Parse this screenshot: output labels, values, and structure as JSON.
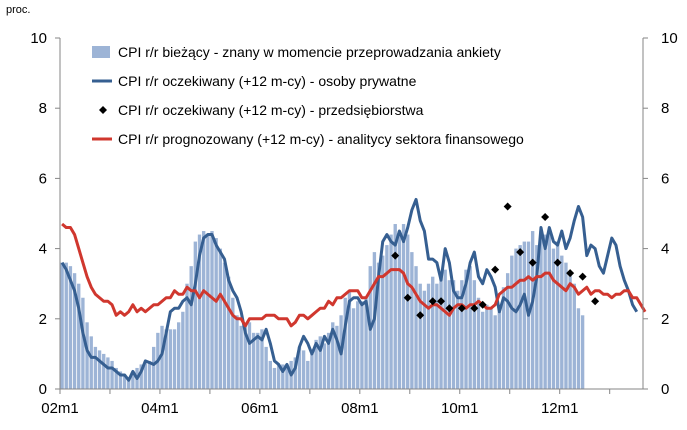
{
  "chart_data": {
    "type": "bar+line",
    "unit_label": "proc.",
    "x_start": "02m1",
    "x_tick_labels": [
      "02m1",
      "04m1",
      "06m1",
      "08m1",
      "10m1",
      "12m1"
    ],
    "y_ticks": [
      0,
      2,
      4,
      6,
      8,
      10
    ],
    "ylim": [
      0,
      10
    ],
    "y2_ticks": [
      0,
      2,
      4,
      6,
      8,
      10
    ],
    "grid": false,
    "legend_position": "top",
    "series": [
      {
        "name": "CPI r/r bieżący - znany w momencie przeprowadzania ankiety",
        "kind": "bar",
        "color": "#9db4d6",
        "values": [
          3.6,
          3.6,
          3.5,
          3.3,
          3.0,
          2.6,
          1.9,
          1.5,
          1.2,
          1.1,
          1.0,
          0.9,
          0.8,
          0.6,
          0.5,
          0.4,
          0.3,
          0.5,
          0.6,
          0.7,
          0.8,
          0.8,
          1.2,
          1.6,
          1.8,
          1.7,
          1.7,
          1.7,
          1.9,
          2.2,
          3.0,
          3.5,
          4.2,
          4.4,
          4.5,
          4.4,
          4.5,
          4.3,
          4.0,
          3.6,
          3.2,
          2.6,
          2.1,
          1.8,
          1.8,
          1.9,
          1.6,
          1.6,
          1.7,
          1.2,
          0.8,
          0.6,
          0.7,
          0.7,
          0.6,
          0.8,
          0.9,
          1.2,
          1.1,
          0.8,
          1.0,
          1.4,
          1.5,
          1.3,
          1.6,
          1.9,
          1.8,
          2.1,
          2.6,
          2.8,
          2.3,
          2.5,
          2.5,
          2.6,
          3.5,
          3.9,
          3.6,
          3.8,
          4.1,
          4.4,
          4.7,
          4.5,
          4.7,
          4.4,
          3.9,
          3.5,
          3.0,
          2.8,
          3.0,
          3.2,
          3.0,
          3.3,
          3.4,
          3.1,
          3.1,
          2.8,
          3.1,
          3.4,
          3.5,
          3.1,
          2.6,
          2.2,
          2.4,
          2.3,
          2.1,
          2.2,
          2.9,
          3.3,
          3.8,
          4.0,
          4.1,
          4.2,
          4.2,
          4.5,
          4.1,
          4.5,
          4.4,
          4.5,
          4.0,
          4.2,
          3.8,
          3.6,
          3.3,
          3.0,
          2.3,
          2.1
        ]
      },
      {
        "name": "CPI r/r oczekiwany (+12 m-cy) - osoby prywatne",
        "kind": "line",
        "color": "#365f91",
        "values": [
          3.6,
          3.4,
          3.1,
          2.8,
          2.3,
          1.6,
          1.1,
          0.9,
          0.9,
          0.8,
          0.7,
          0.6,
          0.6,
          0.5,
          0.4,
          0.4,
          0.25,
          0.5,
          0.3,
          0.5,
          0.8,
          0.75,
          0.7,
          0.8,
          1.0,
          1.6,
          2.2,
          2.3,
          2.3,
          2.5,
          2.6,
          2.4,
          3.0,
          3.8,
          4.3,
          4.4,
          4.4,
          4.1,
          3.9,
          3.7,
          3.1,
          2.8,
          2.6,
          2.2,
          1.6,
          1.3,
          1.4,
          1.5,
          1.4,
          1.7,
          1.3,
          0.8,
          0.7,
          0.5,
          0.7,
          0.4,
          0.6,
          1.2,
          1.5,
          1.3,
          1.0,
          1.3,
          1.1,
          1.5,
          1.3,
          1.7,
          1.4,
          1.0,
          1.8,
          2.5,
          2.6,
          2.6,
          2.4,
          2.5,
          1.7,
          2.0,
          3.2,
          4.2,
          4.4,
          4.2,
          4.1,
          4.5,
          4.2,
          4.6,
          5.1,
          5.4,
          4.8,
          4.5,
          3.7,
          3.7,
          3.6,
          3.1,
          4.0,
          3.6,
          2.8,
          2.6,
          2.6,
          3.0,
          3.6,
          3.9,
          3.2,
          3.0,
          3.4,
          3.2,
          2.9,
          2.2,
          2.6,
          2.5,
          2.3,
          2.2,
          2.4,
          2.7,
          2.1,
          2.5,
          3.2,
          4.6,
          4.0,
          4.6,
          4.2,
          4.1,
          4.5,
          4.0,
          4.3,
          4.8,
          5.2,
          4.9,
          3.8,
          4.1,
          4.0,
          3.5,
          3.3,
          3.8,
          4.3,
          4.1,
          3.5,
          3.1,
          2.8,
          2.4,
          2.2
        ]
      },
      {
        "name": "CPI r/r oczekiwany (+12 m-cy) - przedsiębiorstwa",
        "kind": "scatter",
        "color": "#000000",
        "points": [
          {
            "i": 80,
            "v": 3.8
          },
          {
            "i": 83,
            "v": 2.6
          },
          {
            "i": 86,
            "v": 2.1
          },
          {
            "i": 89,
            "v": 2.5
          },
          {
            "i": 91,
            "v": 2.5
          },
          {
            "i": 93,
            "v": 2.3
          },
          {
            "i": 96,
            "v": 2.3
          },
          {
            "i": 99,
            "v": 2.3
          },
          {
            "i": 101,
            "v": 2.4
          },
          {
            "i": 104,
            "v": 3.4
          },
          {
            "i": 107,
            "v": 5.2
          },
          {
            "i": 110,
            "v": 3.9
          },
          {
            "i": 113,
            "v": 3.6
          },
          {
            "i": 116,
            "v": 4.9
          },
          {
            "i": 119,
            "v": 3.6
          },
          {
            "i": 122,
            "v": 3.3
          },
          {
            "i": 125,
            "v": 3.2
          },
          {
            "i": 128,
            "v": 2.5
          }
        ]
      },
      {
        "name": "CPI r/r prognozowany (+12 m-cy) - analitycy sektora finansowego",
        "kind": "line",
        "color": "#d0372e",
        "values": [
          4.7,
          4.6,
          4.6,
          4.4,
          4.0,
          3.6,
          3.2,
          2.9,
          2.7,
          2.6,
          2.5,
          2.5,
          2.4,
          2.1,
          2.2,
          2.1,
          2.2,
          2.4,
          2.2,
          2.3,
          2.2,
          2.3,
          2.4,
          2.4,
          2.5,
          2.6,
          2.6,
          2.8,
          2.7,
          2.7,
          2.9,
          2.8,
          2.8,
          2.6,
          2.8,
          2.7,
          2.6,
          2.5,
          2.7,
          2.5,
          2.3,
          2.1,
          2.0,
          2.0,
          1.8,
          2.0,
          2.0,
          2.0,
          2.0,
          2.1,
          2.1,
          2.1,
          2.0,
          2.0,
          2.0,
          1.8,
          1.9,
          2.1,
          2.1,
          2.0,
          2.1,
          2.2,
          2.3,
          2.3,
          2.5,
          2.4,
          2.6,
          2.6,
          2.7,
          2.8,
          2.8,
          2.8,
          2.6,
          2.6,
          2.8,
          3.0,
          3.2,
          3.2,
          3.3,
          3.4,
          3.4,
          3.4,
          3.3,
          3.0,
          2.9,
          2.7,
          2.5,
          2.4,
          2.3,
          2.4,
          2.4,
          2.3,
          2.2,
          2.1,
          2.3,
          2.4,
          2.4,
          2.3,
          2.4,
          2.4,
          2.5,
          2.4,
          2.3,
          2.3,
          2.4,
          2.7,
          2.8,
          2.9,
          2.9,
          3.0,
          3.1,
          3.1,
          3.2,
          3.1,
          3.2,
          3.2,
          3.3,
          3.3,
          3.1,
          3.0,
          2.9,
          2.8,
          3.0,
          2.9,
          2.7,
          2.8,
          2.9,
          2.7,
          2.8,
          2.8,
          2.7,
          2.7,
          2.6,
          2.7,
          2.7,
          2.8,
          2.8,
          2.6,
          2.6,
          2.4,
          2.2
        ]
      }
    ]
  }
}
